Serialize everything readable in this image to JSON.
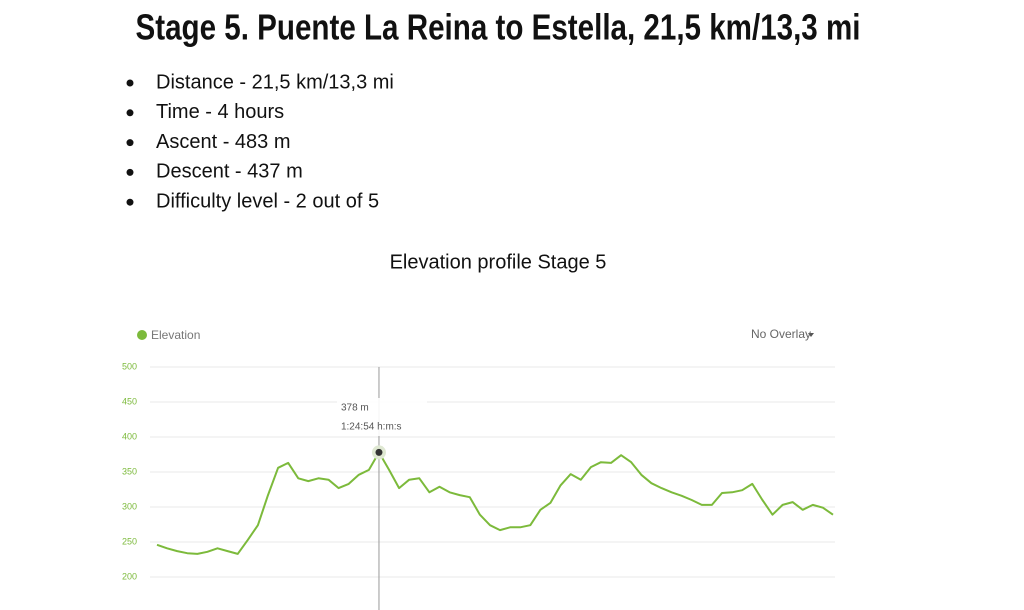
{
  "title": "Stage 5. Puente La Reina to Estella, 21,5 km/13,3 mi",
  "facts": [
    "Distance - 21,5 km/13,3 mi",
    "Time - 4 hours",
    "Ascent - 483 m",
    "Descent - 437 m",
    "Difficulty level - 2 out of 5"
  ],
  "chart_data": {
    "type": "line",
    "title": "Elevation profile Stage 5",
    "series": [
      {
        "name": "Elevation",
        "color": "#7cba3b",
        "values": [
          246,
          241,
          237,
          234,
          233,
          236,
          241,
          237,
          233,
          253,
          274,
          317,
          356,
          363,
          341,
          337,
          341,
          339,
          327,
          333,
          346,
          353,
          378,
          353,
          327,
          339,
          341,
          321,
          329,
          321,
          317,
          314,
          289,
          274,
          267,
          271,
          271,
          274,
          296,
          306,
          331,
          347,
          339,
          357,
          364,
          363,
          374,
          364,
          346,
          334,
          327,
          321,
          316,
          310,
          303,
          303,
          320,
          321,
          324,
          333,
          310,
          289,
          303,
          307,
          296,
          303,
          299,
          289
        ]
      }
    ],
    "ylim": [
      150,
      500
    ],
    "yticks": [
      200,
      250,
      300,
      350,
      400,
      450,
      500
    ],
    "grid": true,
    "overlay": "No Overlay",
    "tooltip": {
      "index": 22,
      "value_label": "378 m",
      "time": "1:24:54 h:m:s"
    }
  }
}
